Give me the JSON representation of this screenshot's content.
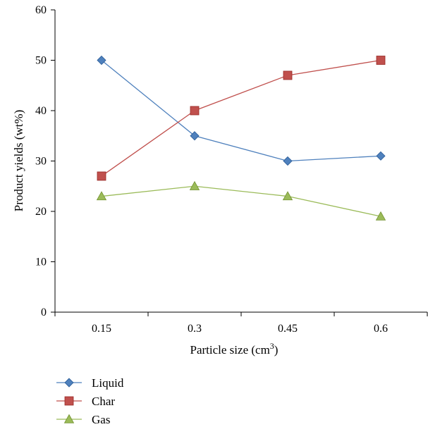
{
  "chart_data": {
    "type": "line",
    "title": "",
    "xlabel": "Particle size (cm",
    "xlabel_superscript": "3",
    "xlabel_suffix": ")",
    "ylabel": "Product yields (wt%)",
    "categories": [
      "0.15",
      "0.3",
      "0.45",
      "0.6"
    ],
    "ylim": [
      0,
      60
    ],
    "yticks": [
      "0",
      "10",
      "20",
      "30",
      "40",
      "50",
      "60"
    ],
    "grid": false,
    "legend_position": "bottom-left",
    "series": [
      {
        "name": "Liquid",
        "values": [
          50,
          35,
          30,
          31
        ],
        "color": "#4F81BD",
        "marker": "diamond"
      },
      {
        "name": "Char",
        "values": [
          27,
          40,
          47,
          50
        ],
        "color": "#C0504D",
        "marker": "square"
      },
      {
        "name": "Gas",
        "values": [
          23,
          25,
          23,
          19
        ],
        "color": "#9BBB59",
        "marker": "triangle"
      }
    ]
  }
}
